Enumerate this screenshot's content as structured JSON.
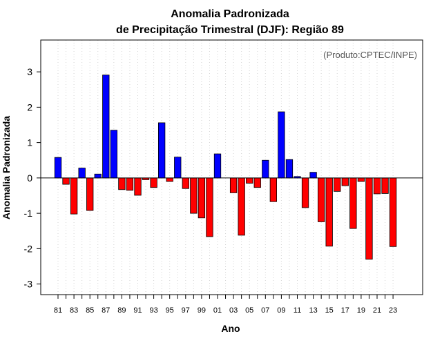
{
  "chart_data": {
    "type": "bar",
    "title": "Anomalia Padronizada",
    "subtitle": "de Precipitação Trimestral (DJF): Região 89",
    "xlabel": "Ano",
    "ylabel": "Anomalia Padronizada",
    "credit": "(Produto:CPTEC/INPE)",
    "ylim": [
      -3.3,
      3.9
    ],
    "yticks": [
      -3,
      -2,
      -1,
      0,
      1,
      2,
      3
    ],
    "xtick_labels": [
      "81",
      "83",
      "85",
      "87",
      "89",
      "91",
      "93",
      "95",
      "97",
      "99",
      "01",
      "03",
      "05",
      "07",
      "09",
      "11",
      "13",
      "15",
      "17",
      "19",
      "21",
      "23"
    ],
    "categories": [
      "81",
      "82",
      "83",
      "84",
      "85",
      "86",
      "87",
      "88",
      "89",
      "90",
      "91",
      "92",
      "93",
      "94",
      "95",
      "96",
      "97",
      "98",
      "99",
      "00",
      "01",
      "02",
      "03",
      "04",
      "05",
      "06",
      "07",
      "08",
      "09",
      "10",
      "11",
      "12",
      "13",
      "14",
      "15",
      "16",
      "17",
      "18",
      "19",
      "20",
      "21",
      "22",
      "23"
    ],
    "values": [
      0.58,
      -0.18,
      -1.02,
      0.28,
      -0.92,
      0.11,
      2.91,
      1.35,
      -0.33,
      -0.35,
      -0.49,
      -0.05,
      -0.27,
      1.56,
      -0.1,
      0.59,
      -0.3,
      -1.0,
      -1.13,
      -1.66,
      0.68,
      0.0,
      -0.42,
      -1.62,
      -0.15,
      -0.27,
      0.5,
      -0.67,
      1.87,
      0.52,
      0.04,
      -0.84,
      0.16,
      -1.24,
      -1.93,
      -0.38,
      -0.22,
      -1.43,
      -0.1,
      -2.3,
      -0.45,
      -0.44,
      -1.94
    ],
    "positive_color": "#0000ff",
    "negative_color": "#ff0000",
    "grid": true
  }
}
